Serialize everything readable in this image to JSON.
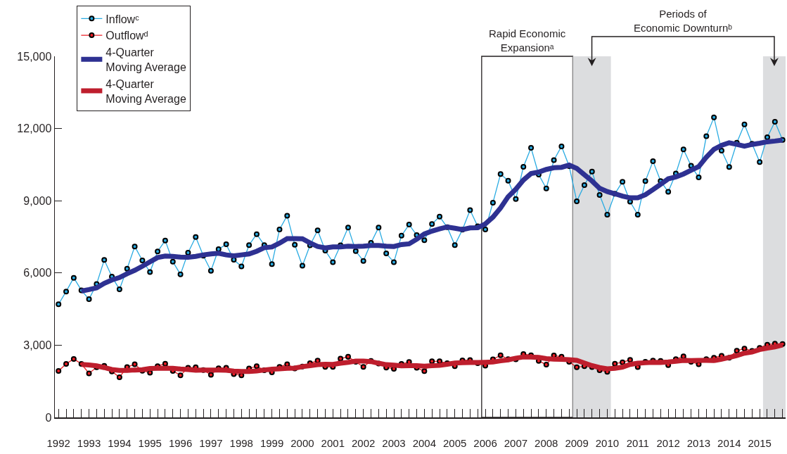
{
  "chart_data": {
    "type": "line",
    "x": [
      1992,
      1992.25,
      1992.5,
      1992.75,
      1993,
      1993.25,
      1993.5,
      1993.75,
      1994,
      1994.25,
      1994.5,
      1994.75,
      1995,
      1995.25,
      1995.5,
      1995.75,
      1996,
      1996.25,
      1996.5,
      1996.75,
      1997,
      1997.25,
      1997.5,
      1997.75,
      1998,
      1998.25,
      1998.5,
      1998.75,
      1999,
      1999.25,
      1999.5,
      1999.75,
      2000,
      2000.25,
      2000.5,
      2000.75,
      2001,
      2001.25,
      2001.5,
      2001.75,
      2002,
      2002.25,
      2002.5,
      2002.75,
      2003,
      2003.25,
      2003.5,
      2003.75,
      2004,
      2004.25,
      2004.5,
      2004.75,
      2005,
      2005.25,
      2005.5,
      2005.75,
      2006,
      2006.25,
      2006.5,
      2006.75,
      2007,
      2007.25,
      2007.5,
      2007.75,
      2008,
      2008.25,
      2008.5,
      2008.75,
      2009,
      2009.25,
      2009.5,
      2009.75,
      2010,
      2010.25,
      2010.5,
      2010.75,
      2011,
      2011.25,
      2011.5,
      2011.75,
      2012,
      2012.25,
      2012.5,
      2012.75,
      2013,
      2013.25,
      2013.5,
      2013.75,
      2014,
      2014.25,
      2014.5,
      2014.75,
      2015,
      2015.25,
      2015.5,
      2015.75
    ],
    "series": [
      {
        "name": "Inflowᶜ",
        "color": "#29abe2",
        "marker": "circle",
        "values": [
          4700,
          5230,
          5800,
          5280,
          4910,
          5540,
          6540,
          5850,
          5320,
          6180,
          7100,
          6520,
          6040,
          6890,
          7350,
          6470,
          5940,
          6840,
          7490,
          6720,
          6090,
          6990,
          7190,
          6550,
          6270,
          7160,
          7610,
          7160,
          6370,
          7810,
          8380,
          7170,
          6300,
          7150,
          7770,
          6930,
          6450,
          7150,
          7890,
          6910,
          6500,
          7250,
          7890,
          6810,
          6450,
          7550,
          8010,
          7570,
          7360,
          8030,
          8340,
          7900,
          7160,
          7800,
          8610,
          7940,
          7810,
          8920,
          10110,
          9830,
          9070,
          10410,
          11200,
          10090,
          9510,
          10690,
          11260,
          10440,
          8980,
          9650,
          10210,
          9240,
          8420,
          9290,
          9790,
          8960,
          8420,
          9820,
          10640,
          9820,
          9370,
          10130,
          11130,
          10450,
          9970,
          11680,
          12460,
          11080,
          10400,
          11410,
          12170,
          11370,
          10610,
          11640,
          12280,
          11530
        ]
      },
      {
        "name": "Outflowᵈ",
        "color": "#ed1c24",
        "marker": "circle",
        "values": [
          1930,
          2220,
          2430,
          2220,
          1830,
          2080,
          2140,
          1910,
          1670,
          2090,
          2210,
          1940,
          1860,
          2130,
          2230,
          1930,
          1750,
          2060,
          2080,
          1970,
          1770,
          2040,
          2060,
          1800,
          1750,
          2030,
          2130,
          1960,
          1870,
          2100,
          2210,
          2030,
          2110,
          2250,
          2360,
          2100,
          2100,
          2440,
          2520,
          2310,
          2100,
          2350,
          2240,
          2070,
          2020,
          2220,
          2300,
          2060,
          1920,
          2330,
          2330,
          2250,
          2130,
          2370,
          2380,
          2250,
          2150,
          2410,
          2580,
          2420,
          2410,
          2630,
          2580,
          2350,
          2190,
          2570,
          2520,
          2310,
          2080,
          2130,
          2090,
          1960,
          1890,
          2230,
          2290,
          2390,
          2090,
          2310,
          2360,
          2350,
          2170,
          2420,
          2540,
          2310,
          2210,
          2420,
          2480,
          2560,
          2480,
          2770,
          2860,
          2760,
          2890,
          3020,
          3060,
          3050
        ]
      },
      {
        "name": "4-Quarter\nMoving Average",
        "color": "#2e3192",
        "marker": "none",
        "values": [
          null,
          null,
          null,
          5250,
          5310,
          5380,
          5570,
          5710,
          5810,
          5970,
          6110,
          6280,
          6460,
          6640,
          6700,
          6690,
          6660,
          6650,
          6690,
          6750,
          6790,
          6820,
          6750,
          6710,
          6750,
          6790,
          6900,
          7050,
          7080,
          7240,
          7430,
          7430,
          7420,
          7250,
          7100,
          7040,
          7080,
          7080,
          7110,
          7100,
          7110,
          7140,
          7140,
          7110,
          7100,
          7180,
          7210,
          7400,
          7620,
          7740,
          7830,
          7910,
          7860,
          7800,
          7870,
          7880,
          8040,
          8320,
          8700,
          9170,
          9480,
          9860,
          10130,
          10190,
          10300,
          10370,
          10390,
          10480,
          10340,
          10080,
          9820,
          9520,
          9380,
          9290,
          9190,
          9120,
          9120,
          9250,
          9460,
          9680,
          9910,
          9990,
          10110,
          10270,
          10420,
          10810,
          11140,
          11300,
          11410,
          11340,
          11270,
          11340,
          11390,
          11450,
          11480,
          11520
        ]
      },
      {
        "name": "4-Quarter\nMoving Average",
        "color": "#be1e2d",
        "marker": "none",
        "values": [
          null,
          null,
          null,
          2200,
          2180,
          2140,
          2070,
          1990,
          1950,
          1950,
          1970,
          1980,
          2030,
          2040,
          2040,
          2040,
          2010,
          1990,
          1960,
          1970,
          1970,
          1970,
          1960,
          1920,
          1910,
          1910,
          1930,
          1970,
          2000,
          2020,
          2040,
          2050,
          2110,
          2150,
          2190,
          2210,
          2200,
          2250,
          2290,
          2340,
          2340,
          2320,
          2250,
          2190,
          2170,
          2140,
          2150,
          2150,
          2130,
          2150,
          2160,
          2210,
          2260,
          2270,
          2280,
          2280,
          2290,
          2300,
          2350,
          2390,
          2460,
          2510,
          2510,
          2490,
          2440,
          2420,
          2410,
          2400,
          2370,
          2260,
          2150,
          2070,
          2020,
          2040,
          2090,
          2200,
          2250,
          2270,
          2290,
          2280,
          2300,
          2330,
          2370,
          2360,
          2370,
          2370,
          2360,
          2420,
          2490,
          2570,
          2670,
          2720,
          2820,
          2880,
          2930,
          3010
        ]
      }
    ],
    "xlim": [
      1991.88,
      2015.85
    ],
    "xticks": [
      1992,
      1993,
      1994,
      1995,
      1996,
      1997,
      1998,
      1999,
      2000,
      2001,
      2002,
      2003,
      2004,
      2005,
      2006,
      2007,
      2008,
      2009,
      2010,
      2011,
      2012,
      2013,
      2014,
      2015
    ],
    "ylim": [
      0,
      15000
    ],
    "yticks": [
      0,
      {
        "value": 3000,
        "label": "3,000"
      },
      {
        "value": 6000,
        "label": "6,000"
      },
      {
        "value": 9000,
        "label": "9,000"
      },
      {
        "value": 12000,
        "label": "12,000"
      },
      {
        "value": 15000,
        "label": "15,000"
      }
    ],
    "grid": false,
    "legend": "top left",
    "bands": [
      {
        "axis": "x",
        "from": 2005.88,
        "to": 2008.87,
        "label": "Rapid Economic\nExpansionᵃ",
        "color": "#ffffff"
      },
      {
        "axis": "x",
        "from": 2008.87,
        "to": 2010.12,
        "color": "#dcdddf"
      },
      {
        "axis": "x",
        "from": 2015.11,
        "to": 2015.85,
        "color": "#dcdddf"
      }
    ],
    "annotations": [
      "Periods of\nEconomic Downturnᵇ"
    ]
  }
}
